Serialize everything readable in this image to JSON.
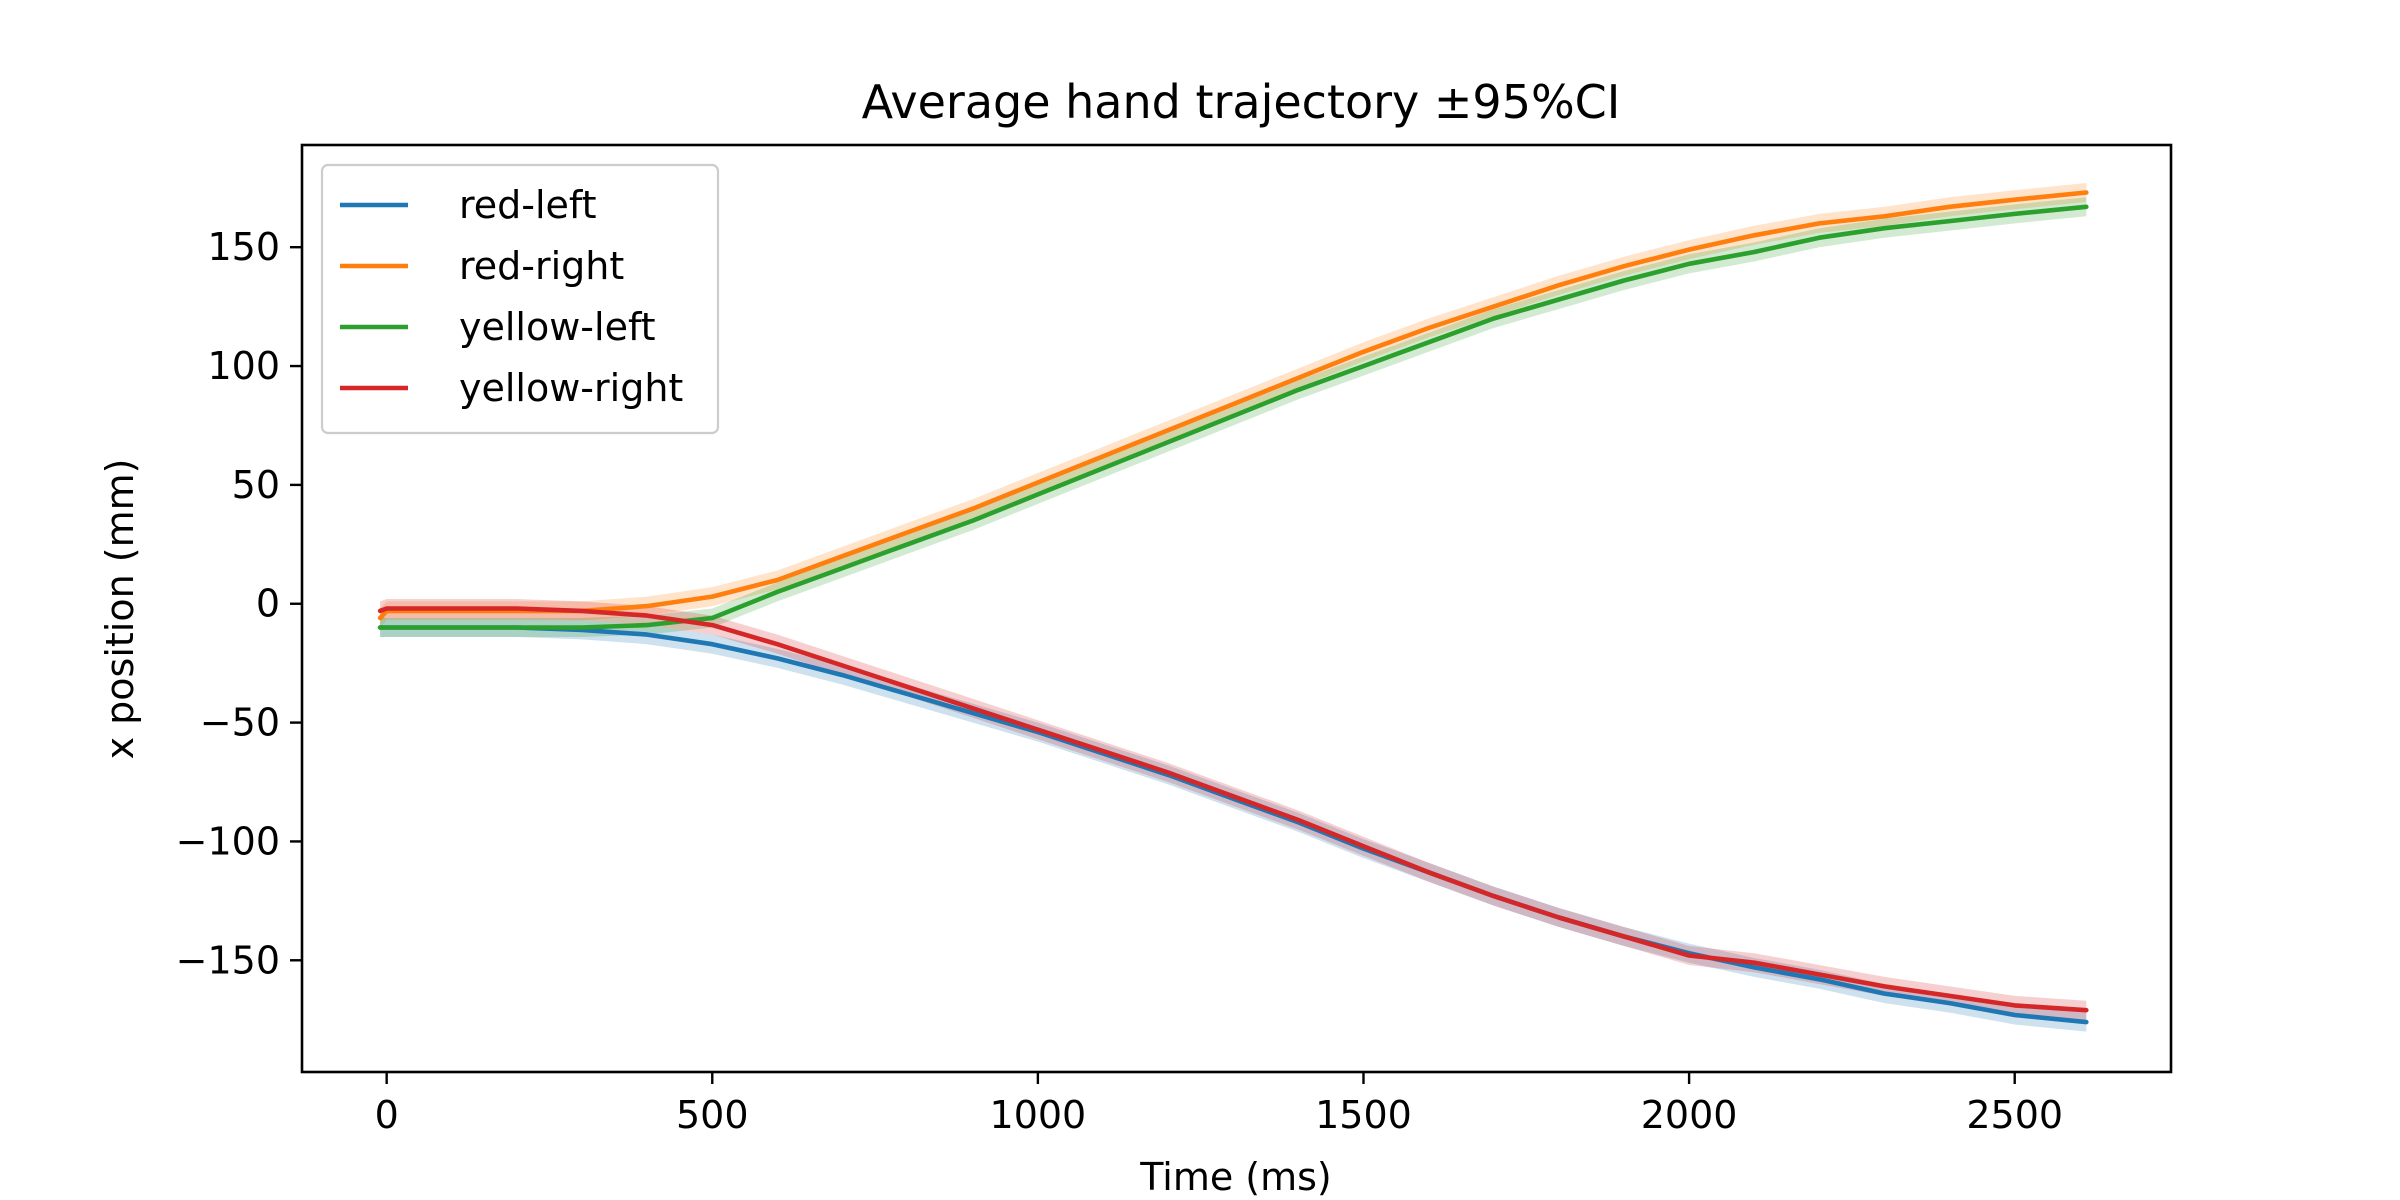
{
  "chart_data": {
    "type": "line",
    "title": "Average hand trajectory ±95%CI",
    "xlabel": "Time (ms)",
    "ylabel": "x position (mm)",
    "xlim": [
      -130,
      2740
    ],
    "ylim": [
      -197,
      193
    ],
    "xticks": [
      0,
      500,
      1000,
      1500,
      2000,
      2500
    ],
    "xtick_labels": [
      "0",
      "500",
      "1000",
      "1500",
      "2000",
      "2500"
    ],
    "yticks": [
      -150,
      -100,
      -50,
      0,
      50,
      100,
      150
    ],
    "ytick_labels": [
      "−150",
      "−100",
      "−50",
      "0",
      "50",
      "100",
      "150"
    ],
    "grid": false,
    "legend_position": "upper-left",
    "series": [
      {
        "name": "red-left",
        "color": "#1f77b4",
        "ci": 4,
        "x": [
          -10,
          0,
          100,
          200,
          300,
          400,
          500,
          600,
          700,
          800,
          900,
          1000,
          1100,
          1200,
          1300,
          1400,
          1500,
          1600,
          1700,
          1800,
          1900,
          2000,
          2100,
          2200,
          2300,
          2400,
          2500,
          2610
        ],
        "y": [
          -10,
          -10,
          -10,
          -10,
          -11,
          -13,
          -17,
          -23,
          -30,
          -38,
          -46,
          -54,
          -63,
          -72,
          -82,
          -92,
          -103,
          -113,
          -123,
          -132,
          -140,
          -147,
          -153,
          -158,
          -164,
          -168,
          -173,
          -176
        ]
      },
      {
        "name": "red-right",
        "color": "#ff7f0e",
        "ci": 4,
        "x": [
          -10,
          0,
          100,
          200,
          300,
          400,
          500,
          600,
          700,
          800,
          900,
          1000,
          1100,
          1200,
          1300,
          1400,
          1500,
          1600,
          1700,
          1800,
          1900,
          2000,
          2100,
          2200,
          2300,
          2400,
          2500,
          2610
        ],
        "y": [
          -6,
          -3,
          -3,
          -3,
          -3,
          -1,
          3,
          10,
          20,
          30,
          40,
          51,
          62,
          73,
          84,
          95,
          106,
          116,
          125,
          134,
          142,
          149,
          155,
          160,
          163,
          167,
          170,
          173
        ]
      },
      {
        "name": "yellow-left",
        "color": "#2ca02c",
        "ci": 4,
        "x": [
          -10,
          0,
          100,
          200,
          300,
          400,
          500,
          600,
          700,
          800,
          900,
          1000,
          1100,
          1200,
          1300,
          1400,
          1500,
          1600,
          1700,
          1800,
          1900,
          2000,
          2100,
          2200,
          2300,
          2400,
          2500,
          2610
        ],
        "y": [
          -10,
          -10,
          -10,
          -10,
          -10,
          -9,
          -6,
          5,
          15,
          25,
          35,
          46,
          57,
          68,
          79,
          90,
          100,
          110,
          120,
          128,
          136,
          143,
          148,
          154,
          158,
          161,
          164,
          167
        ]
      },
      {
        "name": "yellow-right",
        "color": "#d62728",
        "ci": 4,
        "x": [
          -10,
          0,
          100,
          200,
          300,
          400,
          500,
          600,
          700,
          800,
          900,
          1000,
          1100,
          1200,
          1300,
          1400,
          1500,
          1600,
          1700,
          1800,
          1900,
          2000,
          2100,
          2200,
          2300,
          2400,
          2500,
          2610
        ],
        "y": [
          -3,
          -2,
          -2,
          -2,
          -3,
          -5,
          -9,
          -17,
          -26,
          -35,
          -44,
          -53,
          -62,
          -71,
          -81,
          -91,
          -102,
          -113,
          -123,
          -132,
          -140,
          -148,
          -151,
          -156,
          -161,
          -165,
          -169,
          -171
        ]
      }
    ]
  }
}
